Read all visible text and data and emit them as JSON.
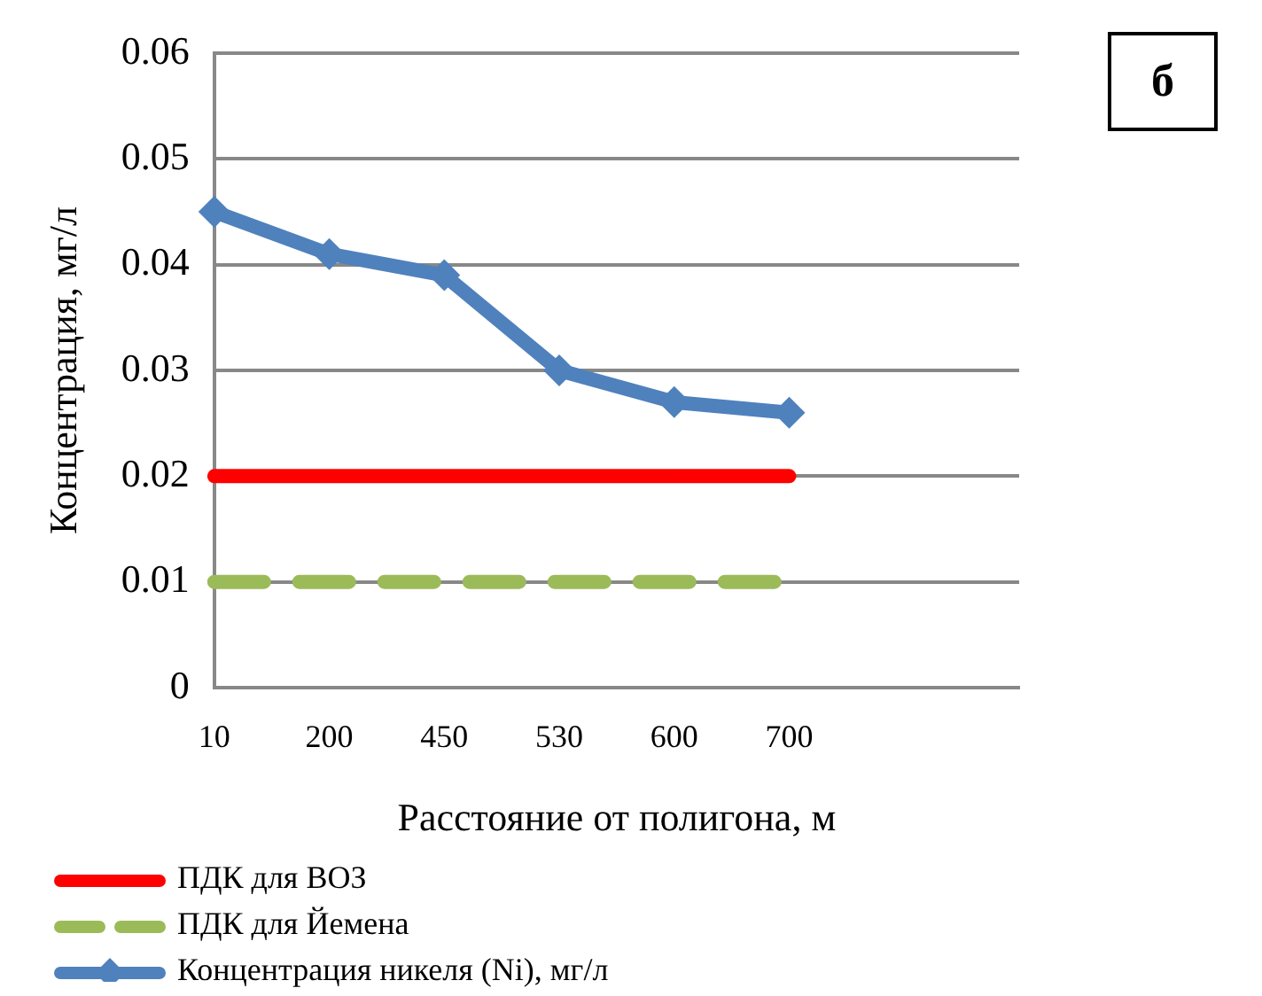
{
  "chart_data": {
    "type": "line",
    "xlabel": "Расстояние от полигона, м",
    "ylabel": "Концентрация, мг/л",
    "categories": [
      "10",
      "200",
      "450",
      "530",
      "600",
      "700",
      null,
      null
    ],
    "series": [
      {
        "name": "ПДК для ВОЗ",
        "color": "#ff0000",
        "values": [
          0.02,
          0.02,
          0.02,
          0.02,
          0.02,
          0.02,
          null,
          null
        ],
        "marker": "none",
        "line_style": "solid"
      },
      {
        "name": "ПДК для Йемена",
        "color": "#9bbb59",
        "values": [
          0.01,
          0.01,
          0.01,
          0.01,
          0.01,
          0.01,
          null,
          null
        ],
        "marker": "none",
        "line_style": "dashed"
      },
      {
        "name": "Концентрация  никеля (Ni),  мг/л",
        "color": "#4f81bd",
        "values": [
          0.045,
          0.041,
          0.039,
          0.03,
          0.027,
          0.026,
          null,
          null
        ],
        "marker": "diamond",
        "line_style": "solid"
      }
    ],
    "ylim": [
      0,
      0.06
    ],
    "yticks": [
      0,
      0.01,
      0.02,
      0.03,
      0.04,
      0.05,
      0.06
    ],
    "grid": "y",
    "legend": "bottom left",
    "annotations": [
      "б"
    ]
  }
}
